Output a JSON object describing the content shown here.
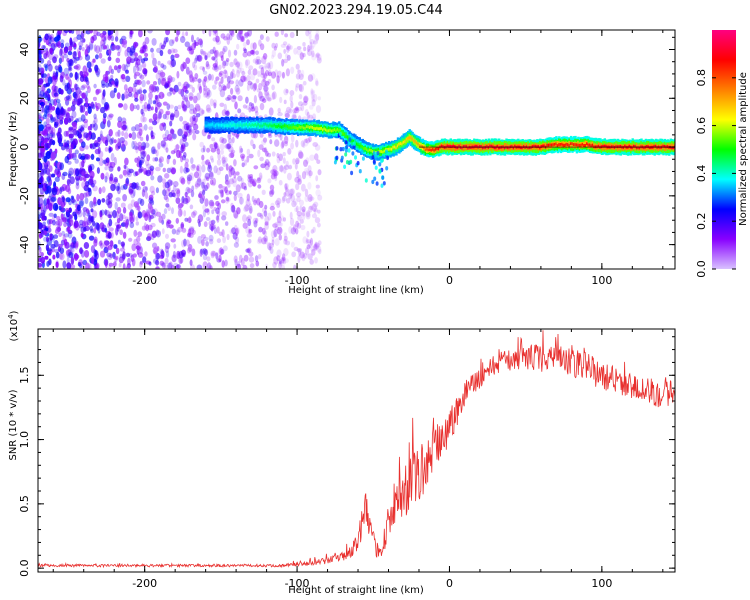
{
  "title": "GN02.2023.294.19.05.C44",
  "colorbar": {
    "label": "Normalized spectral amplitude",
    "ticks": [
      "0.0",
      "0.2",
      "0.4",
      "0.6",
      "0.8"
    ],
    "tick_values": [
      0.0,
      0.2,
      0.4,
      0.6,
      0.8
    ],
    "range": [
      0,
      1
    ],
    "colormap": [
      "#d9c2ff",
      "#8800ff",
      "#0000ff",
      "#00ffff",
      "#00ff00",
      "#ffff00",
      "#ff7f00",
      "#ff0000",
      "#ff0080"
    ]
  },
  "chart_data": [
    {
      "type": "heatmap",
      "name": "spectrogram",
      "xlabel": "Height of straight line (km)",
      "ylabel": "Frequency (Hz)",
      "xlim": [
        -270,
        148
      ],
      "ylim": [
        -50,
        48
      ],
      "x_ticks": [
        -200,
        -100,
        0,
        100
      ],
      "x_tick_labels": [
        "-200",
        "-100",
        "0",
        "100"
      ],
      "y_ticks": [
        -40,
        -20,
        0,
        20,
        40
      ],
      "y_tick_labels": [
        "-40",
        "-20",
        "0",
        "20",
        "40"
      ],
      "ridge": {
        "x": [
          -160,
          -140,
          -120,
          -100,
          -90,
          -80,
          -72,
          -65,
          -60,
          -55,
          -50,
          -45,
          -40,
          -35,
          -30,
          -26,
          -22,
          -18,
          -15,
          -10,
          -5,
          0,
          20,
          60,
          70,
          80,
          90,
          100,
          120,
          140,
          148
        ],
        "freq": [
          9,
          9,
          9,
          8,
          8,
          7,
          7,
          3,
          1,
          -1,
          -2,
          -2,
          -1,
          0,
          2,
          4,
          2,
          0,
          -1,
          -1,
          0,
          0,
          0,
          0,
          1,
          1,
          1,
          0,
          0,
          0,
          0
        ],
        "amplitude": [
          0.35,
          0.4,
          0.45,
          0.55,
          0.6,
          0.6,
          0.55,
          0.5,
          0.5,
          0.55,
          0.6,
          0.6,
          0.6,
          0.65,
          0.65,
          0.7,
          0.7,
          0.75,
          0.8,
          0.85,
          0.9,
          0.92,
          0.92,
          0.9,
          0.85,
          0.85,
          0.85,
          0.9,
          0.9,
          0.9,
          0.9
        ]
      },
      "noise_region": {
        "x_range": [
          -270,
          -85
        ],
        "amplitude": 0.2
      }
    },
    {
      "type": "line",
      "name": "snr",
      "xlabel": "Height of straight line (km)",
      "ylabel": "SNR (10 * v/v)",
      "multiplier": "(x10^4)",
      "color": "#e8302e",
      "xlim": [
        -270,
        148
      ],
      "ylim": [
        -0.03,
        1.86
      ],
      "x_ticks": [
        -200,
        -100,
        0,
        100
      ],
      "x_tick_labels": [
        "-200",
        "-100",
        "0",
        "100"
      ],
      "y_ticks": [
        0.0,
        0.5,
        1.0,
        1.5
      ],
      "y_tick_labels": [
        "0.0",
        "0.5",
        "1.0",
        "1.5"
      ],
      "envelope": {
        "x": [
          -270,
          -110,
          -100,
          -90,
          -80,
          -70,
          -65,
          -60,
          -58,
          -55,
          -50,
          -45,
          -40,
          -35,
          -30,
          -25,
          -20,
          -15,
          -10,
          -5,
          0,
          10,
          20,
          30,
          40,
          50,
          60,
          70,
          80,
          90,
          100,
          110,
          120,
          130,
          140,
          148
        ],
        "y": [
          0.02,
          0.02,
          0.03,
          0.04,
          0.06,
          0.09,
          0.12,
          0.22,
          0.34,
          0.45,
          0.2,
          0.1,
          0.38,
          0.5,
          0.55,
          0.68,
          0.74,
          0.8,
          0.9,
          1.0,
          1.1,
          1.35,
          1.5,
          1.58,
          1.62,
          1.64,
          1.64,
          1.62,
          1.6,
          1.56,
          1.5,
          1.45,
          1.42,
          1.38,
          1.36,
          1.35
        ],
        "noise": [
          0.015,
          0.015,
          0.02,
          0.03,
          0.04,
          0.05,
          0.06,
          0.12,
          0.18,
          0.2,
          0.12,
          0.08,
          0.22,
          0.3,
          0.28,
          0.3,
          0.32,
          0.3,
          0.28,
          0.26,
          0.22,
          0.16,
          0.14,
          0.12,
          0.12,
          0.14,
          0.16,
          0.16,
          0.16,
          0.17,
          0.16,
          0.16,
          0.16,
          0.16,
          0.17,
          0.17
        ]
      }
    }
  ]
}
